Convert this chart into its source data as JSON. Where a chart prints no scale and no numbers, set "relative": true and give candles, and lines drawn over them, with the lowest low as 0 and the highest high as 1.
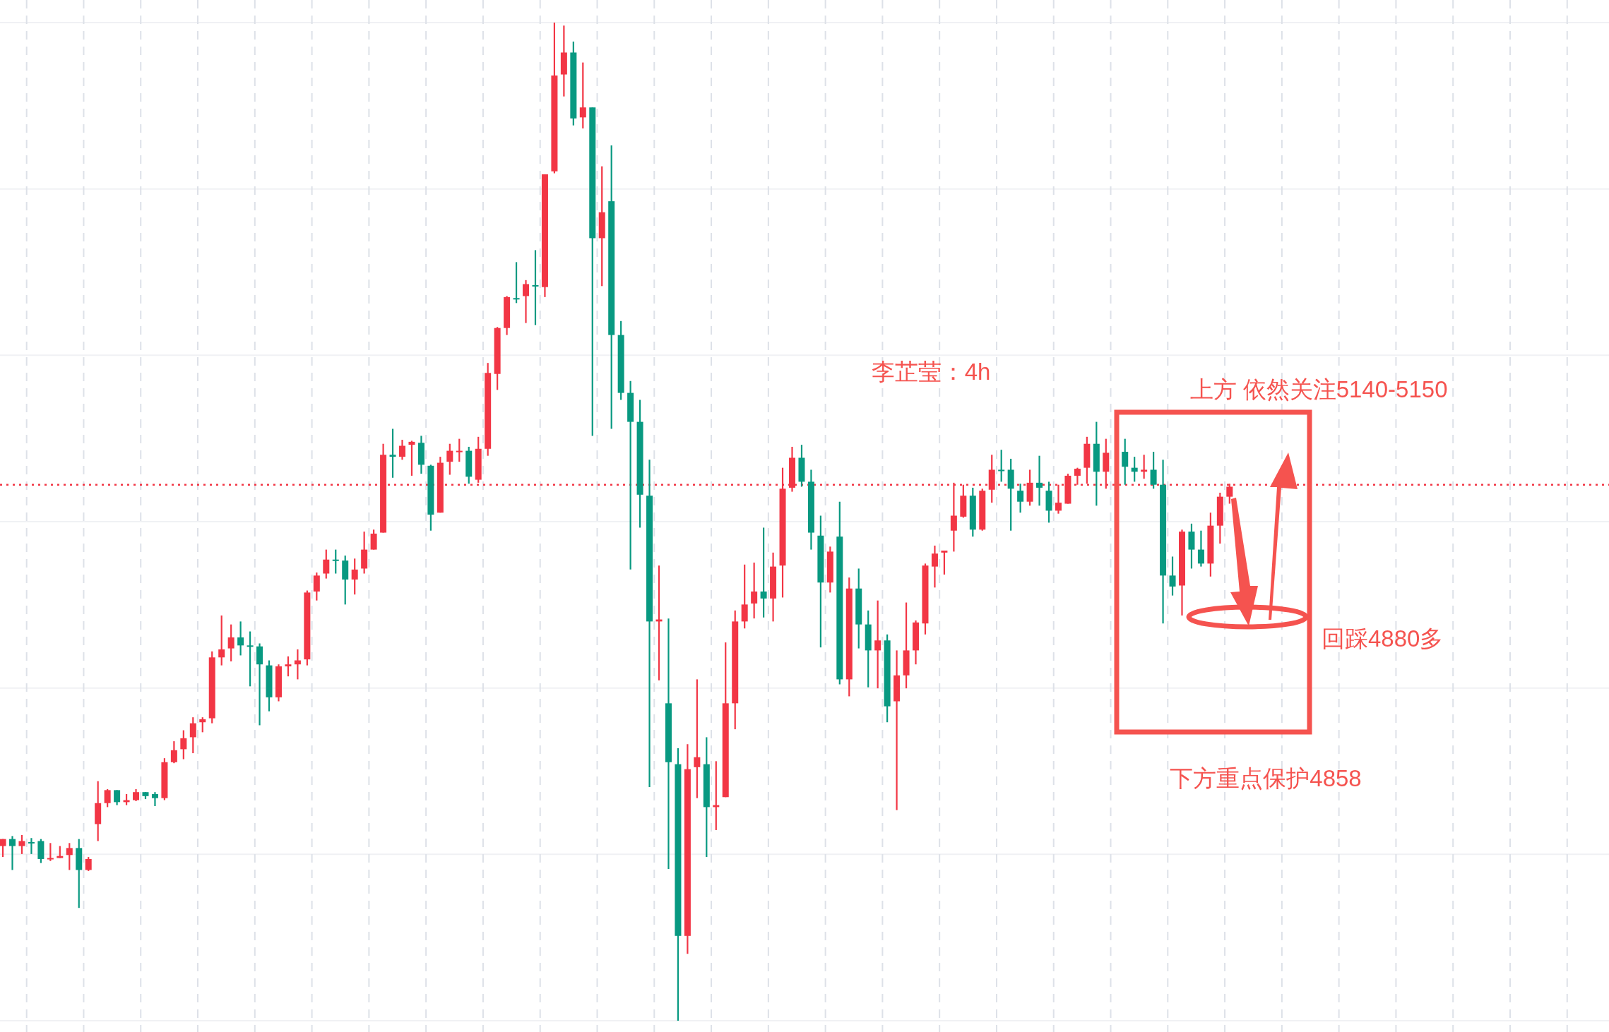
{
  "chart_data": {
    "type": "candlestick",
    "relative": true,
    "grid": true,
    "categories": [
      null,
      null,
      null,
      null,
      null,
      null,
      null,
      null,
      null,
      null,
      null,
      null,
      null,
      null,
      null,
      null,
      null,
      null,
      null,
      null,
      null,
      null,
      null,
      null,
      null,
      null,
      null,
      null,
      null,
      null,
      null,
      null,
      null,
      null,
      null,
      null,
      null,
      null,
      null,
      null,
      null,
      null,
      null,
      null,
      null,
      null,
      null,
      null,
      null,
      null,
      null,
      null,
      null,
      null,
      null,
      null,
      null,
      null,
      null,
      null,
      null,
      null,
      null,
      null,
      null,
      null,
      null,
      null,
      null,
      null,
      null,
      null,
      null,
      null,
      null,
      null,
      null,
      null,
      null,
      null,
      null,
      null,
      null,
      null,
      null,
      null,
      null,
      null,
      null,
      null,
      null,
      null,
      null,
      null,
      null,
      null,
      null,
      null,
      null,
      null,
      null,
      null,
      null,
      null,
      null,
      null,
      null,
      null,
      null,
      null,
      null,
      null,
      null,
      null,
      null,
      null,
      null,
      null,
      null,
      null,
      null,
      null,
      null,
      null,
      null,
      null,
      null,
      null,
      null,
      null
    ],
    "ohlc": [
      [
        0.175,
        0.182,
        0.164,
        0.182
      ],
      [
        0.182,
        0.185,
        0.151,
        0.175
      ],
      [
        0.175,
        0.186,
        0.167,
        0.18
      ],
      [
        0.179,
        0.183,
        0.167,
        0.178
      ],
      [
        0.18,
        0.182,
        0.158,
        0.162
      ],
      [
        0.162,
        0.178,
        0.16,
        0.163
      ],
      [
        0.163,
        0.175,
        0.163,
        0.165
      ],
      [
        0.166,
        0.178,
        0.151,
        0.173
      ],
      [
        0.173,
        0.182,
        0.113,
        0.151
      ],
      [
        0.151,
        0.164,
        0.15,
        0.162
      ],
      [
        0.197,
        0.24,
        0.18,
        0.218
      ],
      [
        0.218,
        0.232,
        0.214,
        0.231
      ],
      [
        0.231,
        0.231,
        0.216,
        0.219
      ],
      [
        0.219,
        0.227,
        0.216,
        0.221
      ],
      [
        0.221,
        0.232,
        0.22,
        0.229
      ],
      [
        0.229,
        0.229,
        0.222,
        0.225
      ],
      [
        0.227,
        0.229,
        0.215,
        0.223
      ],
      [
        0.223,
        0.263,
        0.221,
        0.259
      ],
      [
        0.259,
        0.28,
        0.258,
        0.271
      ],
      [
        0.272,
        0.291,
        0.262,
        0.283
      ],
      [
        0.284,
        0.304,
        0.268,
        0.298
      ],
      [
        0.299,
        0.304,
        0.289,
        0.302
      ],
      [
        0.303,
        0.37,
        0.298,
        0.364
      ],
      [
        0.364,
        0.406,
        0.356,
        0.372
      ],
      [
        0.373,
        0.397,
        0.36,
        0.384
      ],
      [
        0.384,
        0.4,
        0.366,
        0.376
      ],
      [
        0.376,
        0.39,
        0.335,
        0.375
      ],
      [
        0.375,
        0.378,
        0.296,
        0.357
      ],
      [
        0.356,
        0.361,
        0.31,
        0.324
      ],
      [
        0.324,
        0.357,
        0.32,
        0.355
      ],
      [
        0.355,
        0.365,
        0.345,
        0.357
      ],
      [
        0.357,
        0.372,
        0.342,
        0.361
      ],
      [
        0.362,
        0.431,
        0.356,
        0.429
      ],
      [
        0.43,
        0.449,
        0.421,
        0.446
      ],
      [
        0.448,
        0.472,
        0.443,
        0.462
      ],
      [
        0.462,
        0.472,
        0.448,
        0.461
      ],
      [
        0.461,
        0.466,
        0.417,
        0.442
      ],
      [
        0.442,
        0.463,
        0.427,
        0.452
      ],
      [
        0.453,
        0.49,
        0.448,
        0.472
      ],
      [
        0.472,
        0.492,
        0.472,
        0.488
      ],
      [
        0.489,
        0.578,
        0.489,
        0.567
      ],
      [
        0.567,
        0.593,
        0.544,
        0.565
      ],
      [
        0.565,
        0.582,
        0.562,
        0.576
      ],
      [
        0.577,
        0.581,
        0.546,
        0.58
      ],
      [
        0.579,
        0.586,
        0.548,
        0.557
      ],
      [
        0.556,
        0.557,
        0.491,
        0.507
      ],
      [
        0.509,
        0.565,
        0.509,
        0.559
      ],
      [
        0.56,
        0.578,
        0.547,
        0.571
      ],
      [
        0.57,
        0.583,
        0.56,
        0.571
      ],
      [
        0.571,
        0.575,
        0.538,
        0.545
      ],
      [
        0.542,
        0.585,
        0.539,
        0.573
      ],
      [
        0.573,
        0.659,
        0.566,
        0.649
      ],
      [
        0.648,
        0.695,
        0.632,
        0.694
      ],
      [
        0.694,
        0.726,
        0.687,
        0.725
      ],
      [
        0.724,
        0.76,
        0.719,
        0.723
      ],
      [
        0.726,
        0.742,
        0.699,
        0.738
      ],
      [
        0.737,
        0.772,
        0.697,
        0.736
      ],
      [
        0.735,
        0.848,
        0.725,
        0.848
      ],
      [
        0.851,
        1,
        0.849,
        0.947
      ],
      [
        0.948,
        0.997,
        0.926,
        0.97
      ],
      [
        0.97,
        0.981,
        0.897,
        0.904
      ],
      [
        0.905,
        0.96,
        0.894,
        0.915
      ],
      [
        0.915,
        0.915,
        0.586,
        0.784
      ],
      [
        0.784,
        0.856,
        0.736,
        0.81
      ],
      [
        0.821,
        0.877,
        0.593,
        0.687
      ],
      [
        0.687,
        0.701,
        0.622,
        0.629
      ],
      [
        0.629,
        0.641,
        0.452,
        0.6
      ],
      [
        0.6,
        0.622,
        0.494,
        0.527
      ],
      [
        0.526,
        0.562,
        0.234,
        0.4
      ],
      [
        0.4,
        0.456,
        0.341,
        0.402
      ],
      [
        0.318,
        0.403,
        0.152,
        0.259
      ],
      [
        0.257,
        0.273,
        0,
        0.085
      ],
      [
        0.085,
        0.277,
        0.067,
        0.252
      ],
      [
        0.254,
        0.342,
        0.223,
        0.264
      ],
      [
        0.257,
        0.284,
        0.164,
        0.214
      ],
      [
        0.214,
        0.26,
        0.191,
        0.216
      ],
      [
        0.224,
        0.379,
        0.224,
        0.318
      ],
      [
        0.318,
        0.411,
        0.292,
        0.4
      ],
      [
        0.4,
        0.457,
        0.393,
        0.417
      ],
      [
        0.418,
        0.459,
        0.403,
        0.43
      ],
      [
        0.43,
        0.494,
        0.404,
        0.423
      ],
      [
        0.423,
        0.469,
        0.4,
        0.455
      ],
      [
        0.456,
        0.554,
        0.424,
        0.533
      ],
      [
        0.534,
        0.575,
        0.53,
        0.564
      ],
      [
        0.564,
        0.577,
        0.535,
        0.54
      ],
      [
        0.54,
        0.552,
        0.472,
        0.489
      ],
      [
        0.486,
        0.506,
        0.374,
        0.439
      ],
      [
        0.439,
        0.475,
        0.429,
        0.47
      ],
      [
        0.485,
        0.52,
        0.337,
        0.342
      ],
      [
        0.342,
        0.444,
        0.325,
        0.433
      ],
      [
        0.433,
        0.453,
        0.373,
        0.397
      ],
      [
        0.397,
        0.411,
        0.334,
        0.371
      ],
      [
        0.371,
        0.421,
        0.333,
        0.381
      ],
      [
        0.381,
        0.387,
        0.299,
        0.315
      ],
      [
        0.32,
        0.371,
        0.211,
        0.346
      ],
      [
        0.346,
        0.419,
        0.333,
        0.371
      ],
      [
        0.371,
        0.401,
        0.357,
        0.399
      ],
      [
        0.398,
        0.458,
        0.387,
        0.456
      ],
      [
        0.455,
        0.476,
        0.434,
        0.468
      ],
      [
        0.469,
        0.471,
        0.447,
        0.471
      ],
      [
        0.491,
        0.539,
        0.47,
        0.506
      ],
      [
        0.505,
        0.537,
        0.504,
        0.526
      ],
      [
        0.526,
        0.534,
        0.485,
        0.492
      ],
      [
        0.492,
        0.533,
        0.491,
        0.531
      ],
      [
        0.532,
        0.567,
        0.519,
        0.552
      ],
      [
        0.552,
        0.572,
        0.54,
        0.551
      ],
      [
        0.552,
        0.563,
        0.491,
        0.533
      ],
      [
        0.531,
        0.538,
        0.509,
        0.52
      ],
      [
        0.52,
        0.552,
        0.516,
        0.539
      ],
      [
        0.539,
        0.566,
        0.516,
        0.534
      ],
      [
        0.531,
        0.54,
        0.499,
        0.511
      ],
      [
        0.511,
        0.537,
        0.508,
        0.519
      ],
      [
        0.518,
        0.548,
        0.518,
        0.546
      ],
      [
        0.546,
        0.554,
        0.537,
        0.553
      ],
      [
        0.554,
        0.585,
        0.538,
        0.578
      ],
      [
        0.578,
        0.6,
        0.516,
        0.55
      ],
      [
        0.55,
        0.583,
        0.533,
        0.569
      ],
      null,
      [
        0.57,
        0.583,
        0.537,
        0.555
      ],
      [
        0.554,
        0.565,
        0.54,
        0.55
      ],
      [
        0.55,
        0.567,
        0.543,
        0.552
      ],
      [
        0.552,
        0.57,
        0.533,
        0.537
      ],
      [
        0.537,
        0.562,
        0.398,
        0.446
      ],
      [
        0.446,
        0.465,
        0.426,
        0.435
      ],
      [
        0.436,
        0.492,
        0.406,
        0.49
      ],
      [
        0.49,
        0.498,
        0.453,
        0.472
      ],
      [
        0.472,
        0.491,
        0.455,
        0.458
      ],
      [
        0.458,
        0.509,
        0.445,
        0.496
      ],
      [
        0.496,
        0.529,
        0.478,
        0.525
      ],
      [
        0.525,
        0.538,
        0.518,
        0.535
      ]
    ],
    "ref_lines": [
      {
        "axis": "y",
        "value": 0.537,
        "color": "#f23645",
        "line_style": "dotted"
      }
    ],
    "annotations": [
      "李芷莹：4h",
      "上方 依然关注5140-5150",
      "回踩4880多",
      "下方重点保护4858"
    ]
  }
}
